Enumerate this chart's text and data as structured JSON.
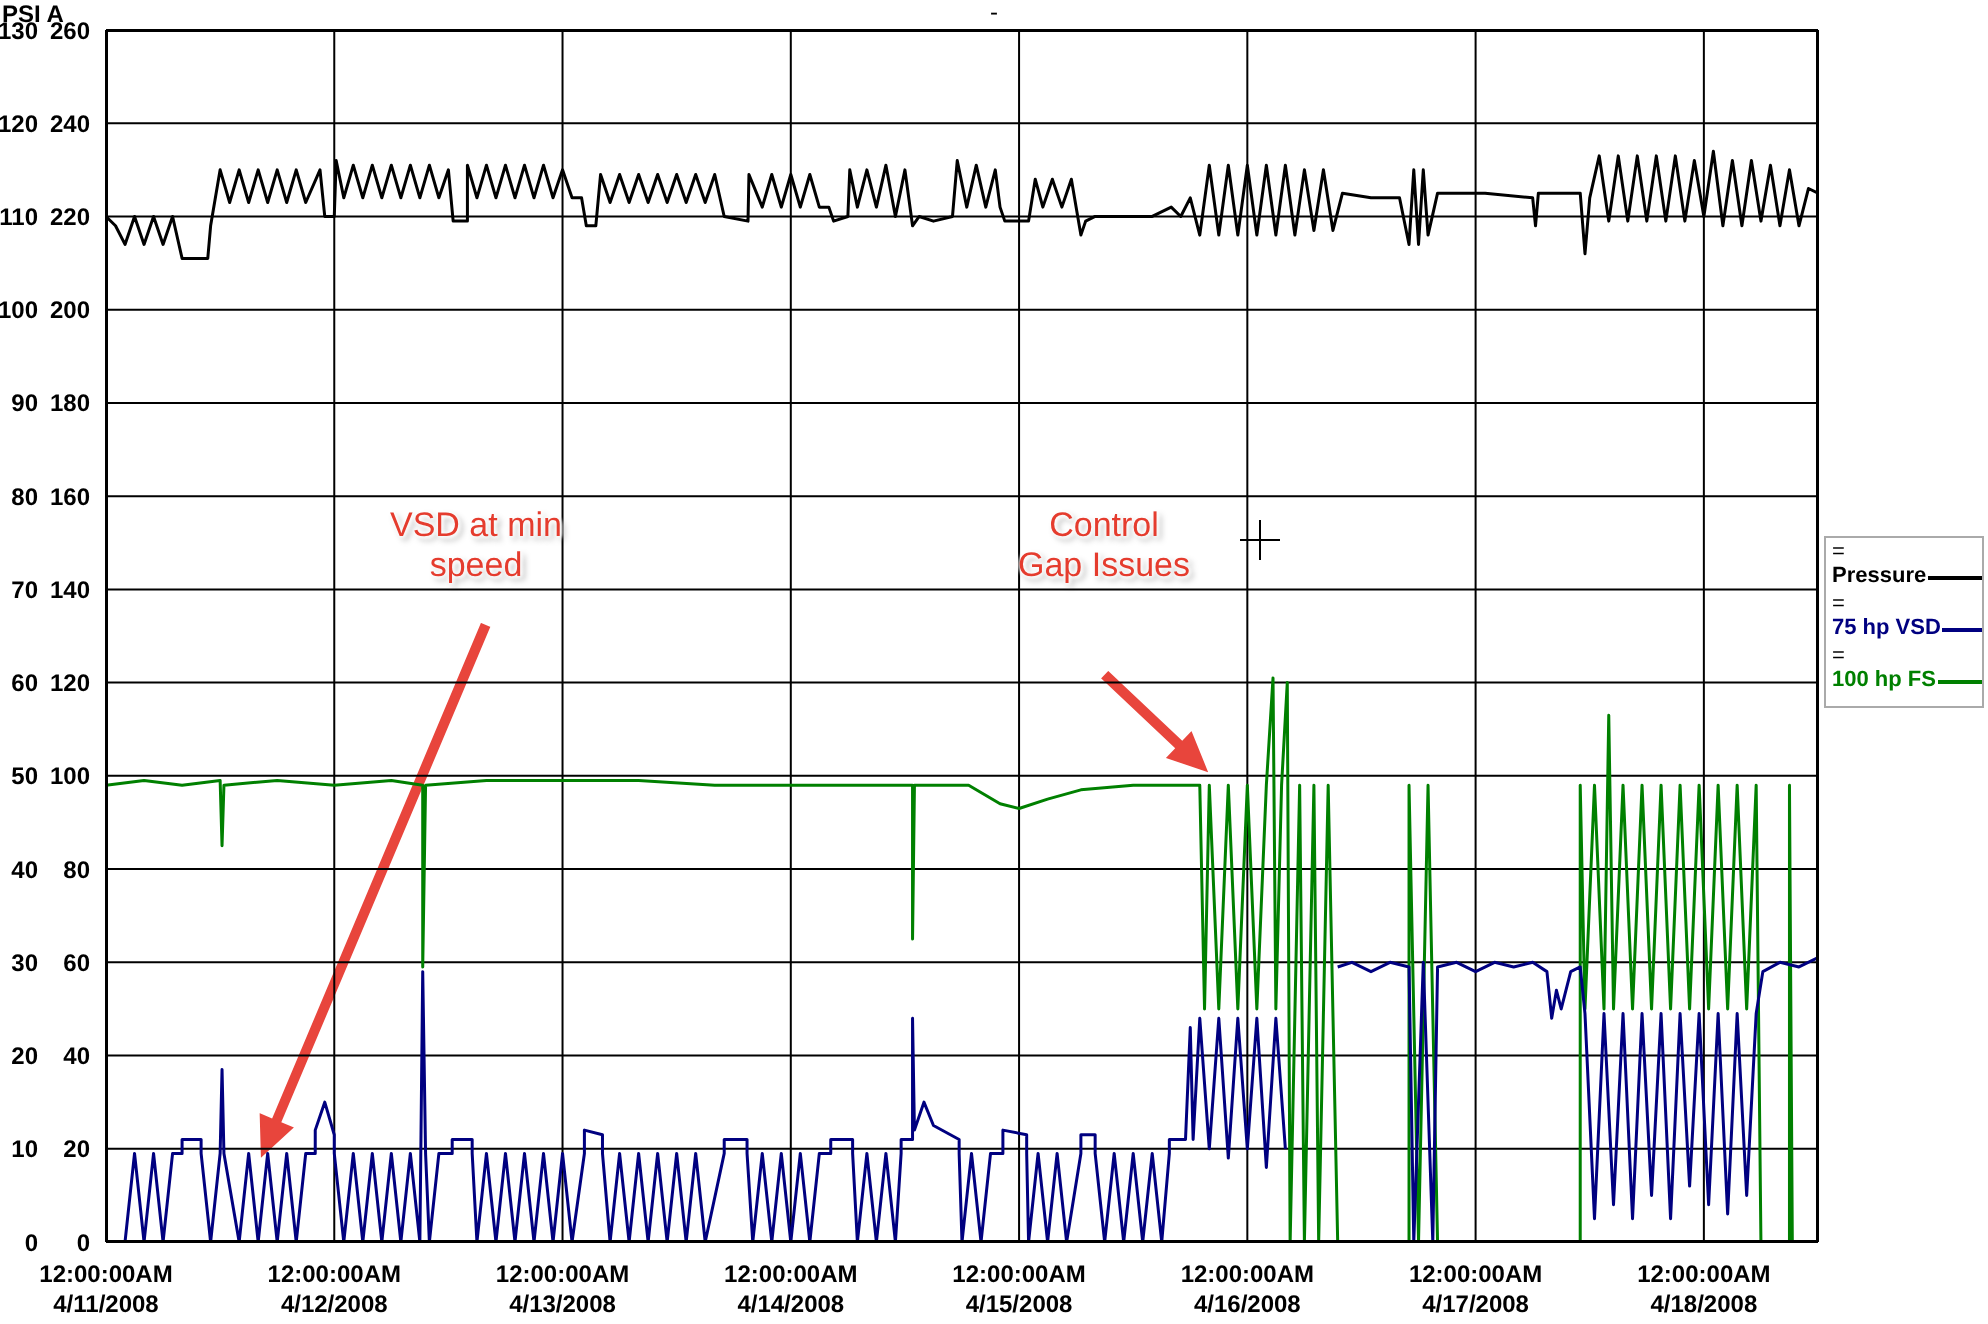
{
  "chart_data": {
    "type": "line",
    "title": "-",
    "ylabel": "PSI A",
    "xlim": [
      "2008-04-11T00:00",
      "2008-04-18T12:00"
    ],
    "xticks": [
      {
        "value": "2008-04-11T00:00",
        "label": "12:00:00AM\n4/11/2008"
      },
      {
        "value": "2008-04-12T00:00",
        "label": "12:00:00AM\n4/12/2008"
      },
      {
        "value": "2008-04-13T00:00",
        "label": "12:00:00AM\n4/13/2008"
      },
      {
        "value": "2008-04-14T00:00",
        "label": "12:00:00AM\n4/14/2008"
      },
      {
        "value": "2008-04-15T00:00",
        "label": "12:00:00AM\n4/15/2008"
      },
      {
        "value": "2008-04-16T00:00",
        "label": "12:00:00AM\n4/16/2008"
      },
      {
        "value": "2008-04-17T00:00",
        "label": "12:00:00AM\n4/17/2008"
      },
      {
        "value": "2008-04-18T00:00",
        "label": "12:00:00AM\n4/18/2008"
      }
    ],
    "ylim": [
      0,
      130
    ],
    "yticks": [
      0,
      10,
      20,
      30,
      40,
      50,
      60,
      70,
      80,
      90,
      100,
      110,
      120,
      130
    ],
    "y2lim": [
      0,
      260
    ],
    "y2ticks": [
      0,
      20,
      40,
      60,
      80,
      100,
      120,
      140,
      160,
      180,
      200,
      220,
      240,
      260
    ],
    "grid": true,
    "legend": "right",
    "annotations": [
      "VSD at min speed",
      "Control Gap Issues",
      "=",
      "=",
      "="
    ],
    "series": [
      {
        "name": "Pressure",
        "color": "#000000",
        "x": [
          "2008-04-11T00:00",
          "2008-04-11T01:00",
          "2008-04-11T02:00",
          "2008-04-11T03:00",
          "2008-04-11T04:00",
          "2008-04-11T05:00",
          "2008-04-11T06:00",
          "2008-04-11T07:00",
          "2008-04-11T08:00",
          "2008-04-11T10:42",
          "2008-04-11T11:00",
          "2008-04-11T12:00",
          "2008-04-11T13:00",
          "2008-04-11T14:00",
          "2008-04-11T15:00",
          "2008-04-11T16:00",
          "2008-04-11T17:00",
          "2008-04-11T18:00",
          "2008-04-11T19:00",
          "2008-04-11T20:00",
          "2008-04-11T21:00",
          "2008-04-11T22:30",
          "2008-04-11T23:00",
          "2008-04-12T00:00",
          "2008-04-12T00:12",
          "2008-04-12T01:00",
          "2008-04-12T02:00",
          "2008-04-12T03:00",
          "2008-04-12T04:00",
          "2008-04-12T05:00",
          "2008-04-12T06:00",
          "2008-04-12T07:00",
          "2008-04-12T08:00",
          "2008-04-12T09:00",
          "2008-04-12T10:00",
          "2008-04-12T11:00",
          "2008-04-12T12:00",
          "2008-04-12T12:30",
          "2008-04-12T14:00",
          "2008-04-12T14:00",
          "2008-04-12T15:00",
          "2008-04-12T16:00",
          "2008-04-12T17:00",
          "2008-04-12T18:00",
          "2008-04-12T19:00",
          "2008-04-12T20:00",
          "2008-04-12T21:00",
          "2008-04-12T22:00",
          "2008-04-12T23:00",
          "2008-04-13T00:00",
          "2008-04-13T01:00",
          "2008-04-13T02:00",
          "2008-04-13T02:30",
          "2008-04-13T03:30",
          "2008-04-13T04:00",
          "2008-04-13T05:00",
          "2008-04-13T06:00",
          "2008-04-13T07:00",
          "2008-04-13T08:00",
          "2008-04-13T09:00",
          "2008-04-13T10:00",
          "2008-04-13T11:00",
          "2008-04-13T12:00",
          "2008-04-13T13:00",
          "2008-04-13T14:00",
          "2008-04-13T15:00",
          "2008-04-13T16:00",
          "2008-04-13T17:00",
          "2008-04-13T19:30",
          "2008-04-13T19:36",
          "2008-04-13T21:00",
          "2008-04-13T22:00",
          "2008-04-13T23:00",
          "2008-04-14T00:00",
          "2008-04-14T01:00",
          "2008-04-14T02:00",
          "2008-04-14T03:00",
          "2008-04-14T04:00",
          "2008-04-14T04:30",
          "2008-04-14T06:00",
          "2008-04-14T06:12",
          "2008-04-14T07:00",
          "2008-04-14T08:00",
          "2008-04-14T09:00",
          "2008-04-14T10:00",
          "2008-04-14T11:00",
          "2008-04-14T12:00",
          "2008-04-14T12:48",
          "2008-04-14T13:30",
          "2008-04-14T15:00",
          "2008-04-14T17:00",
          "2008-04-14T17:30",
          "2008-04-14T18:30",
          "2008-04-14T19:30",
          "2008-04-14T20:30",
          "2008-04-14T21:30",
          "2008-04-14T22:00",
          "2008-04-14T22:30",
          "2008-04-15T01:00",
          "2008-04-15T01:42",
          "2008-04-15T02:30",
          "2008-04-15T03:30",
          "2008-04-15T04:30",
          "2008-04-15T05:30",
          "2008-04-15T06:00",
          "2008-04-15T06:30",
          "2008-04-15T07:00",
          "2008-04-15T08:00",
          "2008-04-15T14:00",
          "2008-04-15T16:00",
          "2008-04-15T17:00",
          "2008-04-15T18:00",
          "2008-04-15T19:00",
          "2008-04-15T20:00",
          "2008-04-15T21:00",
          "2008-04-15T22:00",
          "2008-04-15T23:00",
          "2008-04-16T00:00",
          "2008-04-16T01:00",
          "2008-04-16T02:00",
          "2008-04-16T03:00",
          "2008-04-16T04:00",
          "2008-04-16T05:00",
          "2008-04-16T06:00",
          "2008-04-16T07:00",
          "2008-04-16T08:00",
          "2008-04-16T09:00",
          "2008-04-16T10:00",
          "2008-04-16T13:00",
          "2008-04-16T16:00",
          "2008-04-16T17:00",
          "2008-04-16T17:30",
          "2008-04-16T18:00",
          "2008-04-16T18:30",
          "2008-04-16T19:00",
          "2008-04-16T20:00",
          "2008-04-17T01:00",
          "2008-04-17T06:00",
          "2008-04-17T06:18",
          "2008-04-17T06:36",
          "2008-04-17T08:00",
          "2008-04-17T11:00",
          "2008-04-17T11:30",
          "2008-04-17T12:00",
          "2008-04-17T13:00",
          "2008-04-17T14:00",
          "2008-04-17T15:00",
          "2008-04-17T16:00",
          "2008-04-17T17:00",
          "2008-04-17T18:00",
          "2008-04-17T19:00",
          "2008-04-17T20:00",
          "2008-04-17T21:00",
          "2008-04-17T22:00",
          "2008-04-17T23:00",
          "2008-04-18T00:00",
          "2008-04-18T01:00",
          "2008-04-18T02:00",
          "2008-04-18T03:00",
          "2008-04-18T04:00",
          "2008-04-18T05:00",
          "2008-04-18T06:00",
          "2008-04-18T07:00",
          "2008-04-18T08:00",
          "2008-04-18T09:00",
          "2008-04-18T10:00",
          "2008-04-18T11:00",
          "2008-04-18T12:00"
        ],
        "values": [
          110,
          109,
          107,
          110,
          107,
          110,
          107,
          110,
          105.5,
          105.5,
          109,
          115,
          111.5,
          115,
          111.5,
          115,
          111.5,
          115,
          111.5,
          115,
          111.5,
          115,
          110,
          110,
          116,
          112,
          115.5,
          112,
          115.5,
          112,
          115.5,
          112,
          115.5,
          112,
          115.5,
          112,
          115,
          109.5,
          109.5,
          115.5,
          112,
          115.5,
          112,
          115.5,
          112,
          115.5,
          112,
          115.5,
          112,
          115,
          112,
          112,
          109,
          109,
          114.5,
          111.5,
          114.5,
          111.5,
          114.5,
          111.5,
          114.5,
          111.5,
          114.5,
          111.5,
          114.5,
          111.5,
          114.5,
          110,
          109.5,
          114.5,
          111,
          114.5,
          111,
          114.5,
          111,
          114.5,
          111,
          111,
          109.5,
          110,
          115,
          111,
          115,
          111,
          115.5,
          110,
          115,
          109,
          110,
          109.5,
          110,
          116,
          111,
          115.5,
          111,
          115,
          111,
          109.5,
          109.5,
          114,
          111,
          114,
          111,
          114,
          111,
          108,
          109.5,
          110,
          110,
          111,
          110,
          112,
          108,
          115.5,
          108,
          115.5,
          108,
          115.5,
          108,
          115.5,
          108,
          115.5,
          108,
          115,
          108.5,
          115,
          108.5,
          112.5,
          112,
          112,
          107,
          115,
          107,
          115,
          108,
          112.5,
          112.5,
          112,
          109,
          112.5,
          112.5,
          112.5,
          106,
          112,
          116.5,
          109.5,
          116.5,
          109.5,
          116.5,
          109.5,
          116.5,
          109.5,
          116.5,
          109.5,
          116,
          110,
          117,
          109,
          116,
          109,
          116,
          109.5,
          115.5,
          109,
          115,
          109,
          113,
          112.5
        ]
      },
      {
        "name": "75 hp VSD",
        "color": "#000080",
        "axis": "y2",
        "x": [
          "2008-04-11T00:00",
          "2008-04-11T02:00",
          "2008-04-11T03:00",
          "2008-04-11T04:00",
          "2008-04-11T05:00",
          "2008-04-11T06:00",
          "2008-04-11T07:00",
          "2008-04-11T08:00",
          "2008-04-11T08:00",
          "2008-04-11T10:00",
          "2008-04-11T10:00",
          "2008-04-11T11:00",
          "2008-04-11T12:00",
          "2008-04-11T12:12",
          "2008-04-11T12:24",
          "2008-04-11T14:00",
          "2008-04-11T15:00",
          "2008-04-11T16:00",
          "2008-04-11T17:00",
          "2008-04-11T18:00",
          "2008-04-11T19:00",
          "2008-04-11T20:00",
          "2008-04-11T21:00",
          "2008-04-11T22:00",
          "2008-04-11T22:00",
          "2008-04-11T23:00",
          "2008-04-12T00:00",
          "2008-04-12T00:00",
          "2008-04-12T01:00",
          "2008-04-12T02:00",
          "2008-04-12T03:00",
          "2008-04-12T04:00",
          "2008-04-12T05:00",
          "2008-04-12T06:00",
          "2008-04-12T07:00",
          "2008-04-12T08:00",
          "2008-04-12T09:00",
          "2008-04-12T09:18",
          "2008-04-12T09:36",
          "2008-04-12T10:00",
          "2008-04-12T11:00",
          "2008-04-12T12:24",
          "2008-04-12T12:24",
          "2008-04-12T14:30",
          "2008-04-12T14:30",
          "2008-04-12T15:00",
          "2008-04-12T16:00",
          "2008-04-12T17:00",
          "2008-04-12T18:00",
          "2008-04-12T19:00",
          "2008-04-12T20:00",
          "2008-04-12T21:00",
          "2008-04-12T22:00",
          "2008-04-12T23:00",
          "2008-04-13T00:00",
          "2008-04-13T01:00",
          "2008-04-13T02:18",
          "2008-04-13T02:18",
          "2008-04-13T04:12",
          "2008-04-13T04:12",
          "2008-04-13T05:00",
          "2008-04-13T06:00",
          "2008-04-13T07:00",
          "2008-04-13T08:00",
          "2008-04-13T09:00",
          "2008-04-13T10:00",
          "2008-04-13T11:00",
          "2008-04-13T12:00",
          "2008-04-13T13:00",
          "2008-04-13T14:00",
          "2008-04-13T15:00",
          "2008-04-13T17:00",
          "2008-04-13T17:00",
          "2008-04-13T19:24",
          "2008-04-13T19:24",
          "2008-04-13T20:00",
          "2008-04-13T21:00",
          "2008-04-13T22:00",
          "2008-04-13T23:00",
          "2008-04-14T00:00",
          "2008-04-14T01:00",
          "2008-04-14T02:00",
          "2008-04-14T03:00",
          "2008-04-14T04:12",
          "2008-04-14T04:12",
          "2008-04-14T06:30",
          "2008-04-14T06:30",
          "2008-04-14T07:00",
          "2008-04-14T08:00",
          "2008-04-14T09:00",
          "2008-04-14T10:00",
          "2008-04-14T11:00",
          "2008-04-14T11:36",
          "2008-04-14T11:36",
          "2008-04-14T12:48",
          "2008-04-14T12:48",
          "2008-04-14T13:00",
          "2008-04-14T14:00",
          "2008-04-14T15:00",
          "2008-04-14T17:42",
          "2008-04-14T17:42",
          "2008-04-14T18:00",
          "2008-04-14T19:00",
          "2008-04-14T20:00",
          "2008-04-14T21:00",
          "2008-04-14T22:18",
          "2008-04-14T22:18",
          "2008-04-15T00:48",
          "2008-04-15T00:48",
          "2008-04-15T01:00",
          "2008-04-15T02:00",
          "2008-04-15T03:00",
          "2008-04-15T04:00",
          "2008-04-15T05:00",
          "2008-04-15T06:30",
          "2008-04-15T06:30",
          "2008-04-15T08:00",
          "2008-04-15T08:00",
          "2008-04-15T09:00",
          "2008-04-15T10:00",
          "2008-04-15T11:00",
          "2008-04-15T12:00",
          "2008-04-15T13:00",
          "2008-04-15T14:00",
          "2008-04-15T15:00",
          "2008-04-15T15:48",
          "2008-04-15T15:48",
          "2008-04-15T17:30",
          "2008-04-15T18:00",
          "2008-04-15T18:18",
          "2008-04-15T19:00",
          "2008-04-15T20:00",
          "2008-04-15T21:00",
          "2008-04-15T22:00",
          "2008-04-15T23:00",
          "2008-04-16T00:00",
          "2008-04-16T01:00",
          "2008-04-16T02:00",
          "2008-04-16T03:00",
          "2008-04-16T04:00",
          "2008-04-16T06:00",
          "2008-04-16T09:30",
          "2008-04-16T11:00",
          "2008-04-16T13:00",
          "2008-04-16T15:00",
          "2008-04-16T17:00",
          "2008-04-16T17:30",
          "2008-04-16T18:30",
          "2008-04-16T19:30",
          "2008-04-16T20:00",
          "2008-04-16T22:00",
          "2008-04-17T00:00",
          "2008-04-17T02:00",
          "2008-04-17T04:00",
          "2008-04-17T06:00",
          "2008-04-17T07:30",
          "2008-04-17T08:00",
          "2008-04-17T08:30",
          "2008-04-17T09:00",
          "2008-04-17T10:00",
          "2008-04-17T11:00",
          "2008-04-17T11:30",
          "2008-04-17T12:30",
          "2008-04-17T13:30",
          "2008-04-17T14:30",
          "2008-04-17T15:30",
          "2008-04-17T16:30",
          "2008-04-17T17:30",
          "2008-04-17T18:30",
          "2008-04-17T19:30",
          "2008-04-17T20:30",
          "2008-04-17T21:30",
          "2008-04-17T22:30",
          "2008-04-17T23:30",
          "2008-04-18T00:30",
          "2008-04-18T01:30",
          "2008-04-18T02:30",
          "2008-04-18T03:30",
          "2008-04-18T04:30",
          "2008-04-18T05:30",
          "2008-04-18T06:12",
          "2008-04-18T08:00",
          "2008-04-18T10:00",
          "2008-04-18T12:00"
        ],
        "values": [
          0,
          0,
          19,
          0,
          19,
          0,
          19,
          19,
          22,
          22,
          19,
          0,
          19,
          37,
          19,
          0,
          19,
          0,
          19,
          0,
          19,
          0,
          19,
          19,
          24,
          30,
          23,
          19,
          0,
          19,
          0,
          19,
          0,
          19,
          0,
          19,
          0,
          58,
          19,
          0,
          19,
          19,
          22,
          22,
          19,
          0,
          19,
          0,
          19,
          0,
          19,
          0,
          19,
          0,
          19,
          0,
          19,
          24,
          23,
          19,
          0,
          19,
          0,
          19,
          0,
          19,
          0,
          19,
          0,
          19,
          0,
          19,
          22,
          22,
          19,
          0,
          19,
          0,
          19,
          0,
          19,
          0,
          19,
          19,
          22,
          22,
          19,
          0,
          19,
          0,
          19,
          0,
          19,
          22,
          22,
          48,
          24,
          30,
          25,
          22,
          19,
          0,
          19,
          0,
          19,
          19,
          24,
          23,
          19,
          0,
          19,
          0,
          19,
          0,
          19,
          23,
          23,
          19,
          0,
          19,
          0,
          19,
          0,
          19,
          0,
          19,
          22,
          22,
          46,
          22,
          48,
          20,
          48,
          18,
          48,
          20,
          48,
          16,
          48,
          20,
          null,
          59,
          60,
          58,
          60,
          59,
          0,
          60,
          0,
          59,
          60,
          58,
          60,
          59,
          60,
          58,
          48,
          54,
          50,
          58,
          59,
          49,
          5,
          49,
          8,
          49,
          5,
          49,
          10,
          49,
          5,
          49,
          12,
          49,
          8,
          49,
          6,
          49,
          10,
          49,
          58,
          60,
          59,
          61
        ]
      },
      {
        "name": "100 hp FS",
        "color": "#008000",
        "axis": "y2",
        "x": [
          "2008-04-11T00:00",
          "2008-04-11T04:00",
          "2008-04-11T08:00",
          "2008-04-11T12:00",
          "2008-04-11T12:12",
          "2008-04-11T12:24",
          "2008-04-11T18:00",
          "2008-04-12T00:00",
          "2008-04-12T06:00",
          "2008-04-12T09:18",
          "2008-04-12T09:18",
          "2008-04-12T09:36",
          "2008-04-12T16:00",
          "2008-04-13T00:00",
          "2008-04-13T08:00",
          "2008-04-13T16:00",
          "2008-04-14T00:00",
          "2008-04-14T08:00",
          "2008-04-14T12:48",
          "2008-04-14T12:48",
          "2008-04-14T13:00",
          "2008-04-14T18:42",
          "2008-04-14T22:00",
          "2008-04-15T00:00",
          "2008-04-15T03:00",
          "2008-04-15T06:30",
          "2008-04-15T12:00",
          "2008-04-15T19:00",
          "2008-04-15T19:30",
          "2008-04-15T20:00",
          "2008-04-15T21:00",
          "2008-04-15T22:00",
          "2008-04-15T23:00",
          "2008-04-16T00:00",
          "2008-04-16T01:00",
          "2008-04-16T02:00",
          "2008-04-16T02:42",
          "2008-04-16T03:00",
          "2008-04-16T03:36",
          "2008-04-16T04:12",
          "2008-04-16T04:30",
          "2008-04-16T05:30",
          "2008-04-16T06:00",
          "2008-04-16T07:00",
          "2008-04-16T07:30",
          "2008-04-16T08:30",
          "2008-04-16T09:30",
          "2008-04-16T17:00",
          "2008-04-16T17:00",
          "2008-04-16T18:00",
          "2008-04-16T19:00",
          "2008-04-16T20:00",
          "2008-04-17T11:00",
          "2008-04-17T11:00",
          "2008-04-17T11:30",
          "2008-04-17T12:30",
          "2008-04-17T13:30",
          "2008-04-17T14:00",
          "2008-04-17T14:30",
          "2008-04-17T15:30",
          "2008-04-17T16:30",
          "2008-04-17T17:30",
          "2008-04-17T18:30",
          "2008-04-17T19:30",
          "2008-04-17T20:30",
          "2008-04-17T21:30",
          "2008-04-17T22:30",
          "2008-04-17T23:30",
          "2008-04-18T00:30",
          "2008-04-18T01:30",
          "2008-04-18T02:30",
          "2008-04-18T03:30",
          "2008-04-18T04:30",
          "2008-04-18T05:30",
          "2008-04-18T06:00",
          "2008-04-18T09:00",
          "2008-04-18T09:00",
          "2008-04-18T09:18",
          "2008-04-18T12:00"
        ],
        "values": [
          98,
          99,
          98,
          99,
          85,
          98,
          99,
          98,
          99,
          98,
          59,
          98,
          99,
          99,
          99,
          98,
          98,
          98,
          98,
          65,
          98,
          98,
          94,
          93,
          95,
          97,
          98,
          98,
          50,
          98,
          50,
          98,
          50,
          98,
          50,
          98,
          121,
          50,
          98,
          120,
          0,
          98,
          0,
          98,
          0,
          98,
          0,
          0,
          98,
          0,
          98,
          0,
          0,
          98,
          50,
          98,
          50,
          113,
          50,
          98,
          50,
          98,
          50,
          98,
          50,
          98,
          50,
          98,
          50,
          98,
          50,
          98,
          50,
          98,
          0,
          0,
          98,
          0,
          0
        ]
      }
    ]
  }
}
